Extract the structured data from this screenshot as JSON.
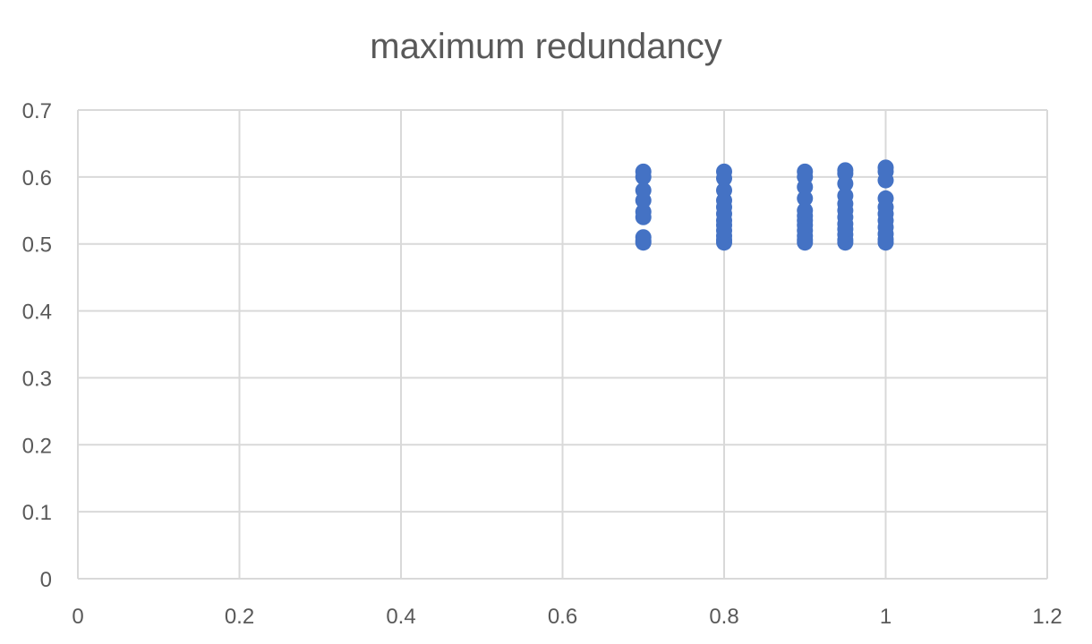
{
  "chart_data": {
    "type": "scatter",
    "title": "maximum redundancy",
    "xlabel": "",
    "ylabel": "",
    "xlim": [
      0,
      1.2
    ],
    "ylim": [
      0,
      0.7
    ],
    "x_ticks": [
      "0",
      "0.2",
      "0.4",
      "0.6",
      "0.8",
      "1",
      "1.2"
    ],
    "y_ticks": [
      "0",
      "0.1",
      "0.2",
      "0.3",
      "0.4",
      "0.5",
      "0.6",
      "0.7"
    ],
    "grid": true,
    "legend": "none",
    "marker_color": "#4472C4",
    "series": [
      {
        "points": [
          [
            0.7,
            0.502
          ],
          [
            0.7,
            0.505
          ],
          [
            0.7,
            0.51
          ],
          [
            0.7,
            0.54
          ],
          [
            0.7,
            0.548
          ],
          [
            0.7,
            0.565
          ],
          [
            0.7,
            0.58
          ],
          [
            0.7,
            0.6
          ],
          [
            0.7,
            0.608
          ],
          [
            0.8,
            0.502
          ],
          [
            0.8,
            0.506
          ],
          [
            0.8,
            0.512
          ],
          [
            0.8,
            0.52
          ],
          [
            0.8,
            0.528
          ],
          [
            0.8,
            0.535
          ],
          [
            0.8,
            0.545
          ],
          [
            0.8,
            0.555
          ],
          [
            0.8,
            0.565
          ],
          [
            0.8,
            0.58
          ],
          [
            0.8,
            0.598
          ],
          [
            0.8,
            0.608
          ],
          [
            0.9,
            0.502
          ],
          [
            0.9,
            0.506
          ],
          [
            0.9,
            0.512
          ],
          [
            0.9,
            0.52
          ],
          [
            0.9,
            0.528
          ],
          [
            0.9,
            0.535
          ],
          [
            0.9,
            0.542
          ],
          [
            0.9,
            0.55
          ],
          [
            0.9,
            0.568
          ],
          [
            0.9,
            0.585
          ],
          [
            0.9,
            0.6
          ],
          [
            0.9,
            0.608
          ],
          [
            0.95,
            0.502
          ],
          [
            0.95,
            0.506
          ],
          [
            0.95,
            0.514
          ],
          [
            0.95,
            0.522
          ],
          [
            0.95,
            0.53
          ],
          [
            0.95,
            0.54
          ],
          [
            0.95,
            0.55
          ],
          [
            0.95,
            0.56
          ],
          [
            0.95,
            0.572
          ],
          [
            0.95,
            0.59
          ],
          [
            0.95,
            0.605
          ],
          [
            0.95,
            0.61
          ],
          [
            1.0,
            0.502
          ],
          [
            1.0,
            0.507
          ],
          [
            1.0,
            0.515
          ],
          [
            1.0,
            0.525
          ],
          [
            1.0,
            0.535
          ],
          [
            1.0,
            0.545
          ],
          [
            1.0,
            0.555
          ],
          [
            1.0,
            0.568
          ],
          [
            1.0,
            0.595
          ],
          [
            1.0,
            0.608
          ],
          [
            1.0,
            0.614
          ]
        ]
      }
    ]
  }
}
